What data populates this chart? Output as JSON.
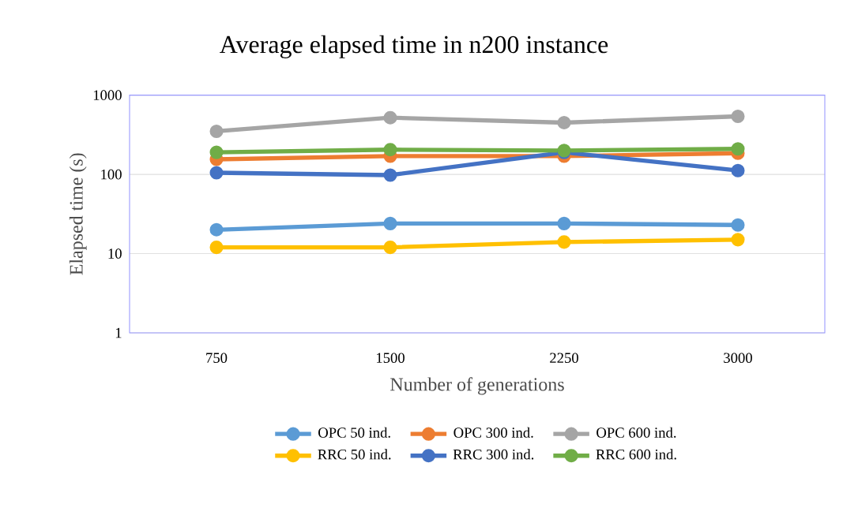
{
  "chart_data": {
    "type": "line",
    "title": "Average elapsed time in n200 instance",
    "xlabel": "Number of generations",
    "ylabel": "Elapsed time (s)",
    "categories": [
      "750",
      "1500",
      "2250",
      "3000"
    ],
    "log": true,
    "ylim": [
      1,
      1000
    ],
    "yticks": [
      1,
      10,
      100,
      1000
    ],
    "grid": "y",
    "legend": "bottom",
    "marker": "circle",
    "line_style": "solid",
    "series": [
      {
        "name": "OPC 50 ind.",
        "color": "#5b9bd5",
        "values": [
          20,
          24,
          24,
          23
        ]
      },
      {
        "name": "OPC 300 ind.",
        "color": "#ed7d31",
        "values": [
          155,
          170,
          170,
          185
        ]
      },
      {
        "name": "OPC 600 ind.",
        "color": "#a5a5a5",
        "values": [
          350,
          520,
          450,
          540
        ]
      },
      {
        "name": "RRC 50 ind.",
        "color": "#ffc000",
        "values": [
          12,
          12,
          14,
          15
        ]
      },
      {
        "name": "RRC 300 ind.",
        "color": "#4472c4",
        "values": [
          105,
          98,
          190,
          112
        ]
      },
      {
        "name": "RRC 600 ind.",
        "color": "#70ad47",
        "values": [
          190,
          205,
          200,
          210
        ]
      }
    ]
  }
}
